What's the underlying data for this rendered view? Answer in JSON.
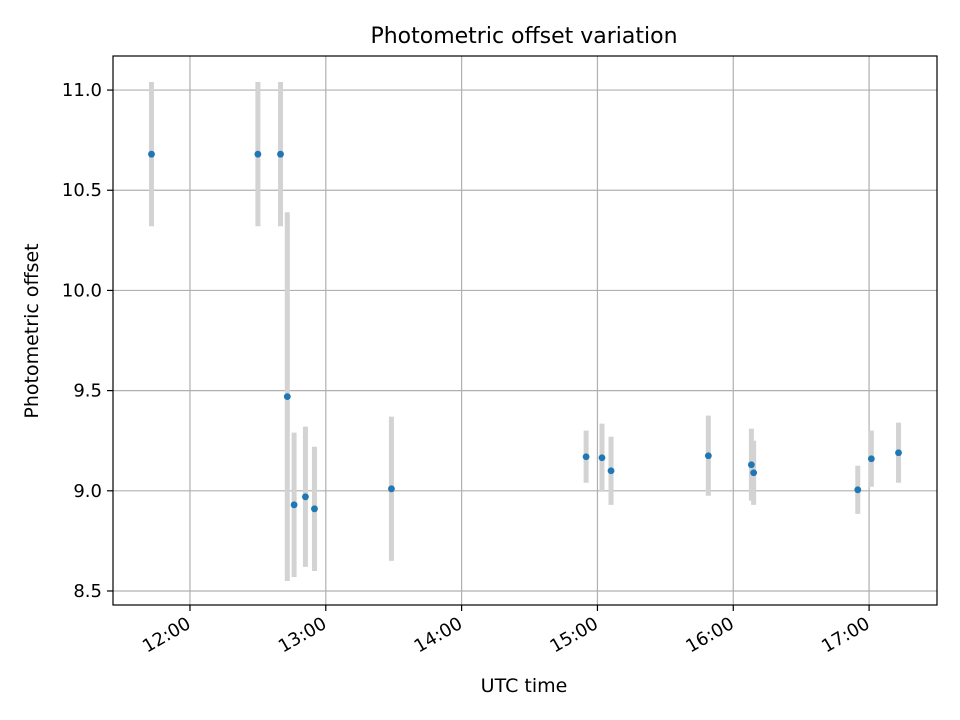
{
  "chart_data": {
    "type": "scatter",
    "title": "Photometric offset variation",
    "xlabel": "UTC time",
    "ylabel": "Photometric offset",
    "xlim": [
      "11:26",
      "17:30"
    ],
    "ylim": [
      8.43,
      11.17
    ],
    "x_ticks": [
      "12:00",
      "13:00",
      "14:00",
      "15:00",
      "16:00",
      "17:00"
    ],
    "y_ticks": [
      "8.5",
      "9.0",
      "9.5",
      "10.0",
      "10.5",
      "11.0"
    ],
    "grid": true,
    "point_color": "#1f77b4",
    "errorbar_color": "#d3d3d3",
    "points": [
      {
        "x": "11:43",
        "y": 10.68,
        "err": 0.36
      },
      {
        "x": "12:30",
        "y": 10.68,
        "err": 0.36
      },
      {
        "x": "12:40",
        "y": 10.68,
        "err": 0.36
      },
      {
        "x": "12:43",
        "y": 9.47,
        "err": 0.92
      },
      {
        "x": "12:46",
        "y": 8.93,
        "err": 0.36
      },
      {
        "x": "12:51",
        "y": 8.97,
        "err": 0.35
      },
      {
        "x": "12:55",
        "y": 8.91,
        "err": 0.31
      },
      {
        "x": "13:29",
        "y": 9.01,
        "err": 0.36
      },
      {
        "x": "14:55",
        "y": 9.17,
        "err": 0.13
      },
      {
        "x": "15:02",
        "y": 9.165,
        "err": 0.17
      },
      {
        "x": "15:06",
        "y": 9.1,
        "err": 0.17
      },
      {
        "x": "15:49",
        "y": 9.175,
        "err": 0.2
      },
      {
        "x": "16:08",
        "y": 9.13,
        "err": 0.18
      },
      {
        "x": "16:09",
        "y": 9.09,
        "err": 0.16
      },
      {
        "x": "16:55",
        "y": 9.005,
        "err": 0.12
      },
      {
        "x": "17:01",
        "y": 9.16,
        "err": 0.14
      },
      {
        "x": "17:13",
        "y": 9.19,
        "err": 0.15
      }
    ]
  }
}
